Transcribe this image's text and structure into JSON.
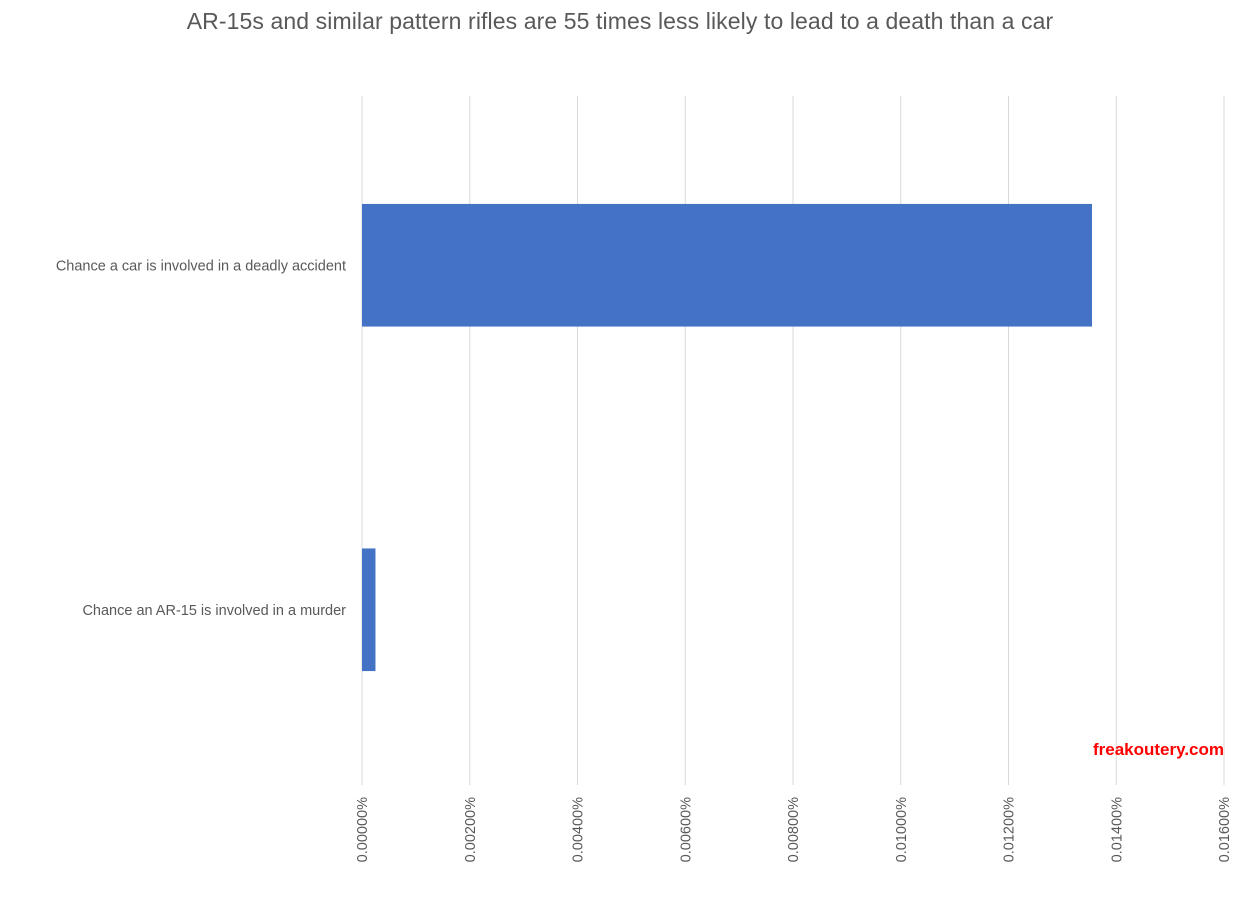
{
  "chart_data": {
    "type": "bar",
    "orientation": "horizontal",
    "title": "AR-15s and similar pattern rifles are 55 times less likely to lead to a death than a car",
    "categories": [
      "Chance a car is involved in a deadly accident",
      "Chance an AR-15 is involved in a murder"
    ],
    "values": [
      0.01355,
      0.00025
    ],
    "value_unit": "%",
    "xlim": [
      0,
      0.016
    ],
    "x_ticks": [
      0,
      0.002,
      0.004,
      0.006,
      0.008,
      0.01,
      0.012,
      0.014,
      0.016
    ],
    "x_tick_labels": [
      "0.00000%",
      "0.00200%",
      "0.00400%",
      "0.00600%",
      "0.00800%",
      "0.01000%",
      "0.01200%",
      "0.01400%",
      "0.01600%"
    ],
    "xlabel": "",
    "ylabel": "",
    "grid": "vertical",
    "legend": "none",
    "bar_color": "#4472c4",
    "grid_color": "#d9d9d9",
    "text_color": "#595959"
  },
  "watermark": {
    "text": "freakoutery.com",
    "color": "#ff0000"
  }
}
